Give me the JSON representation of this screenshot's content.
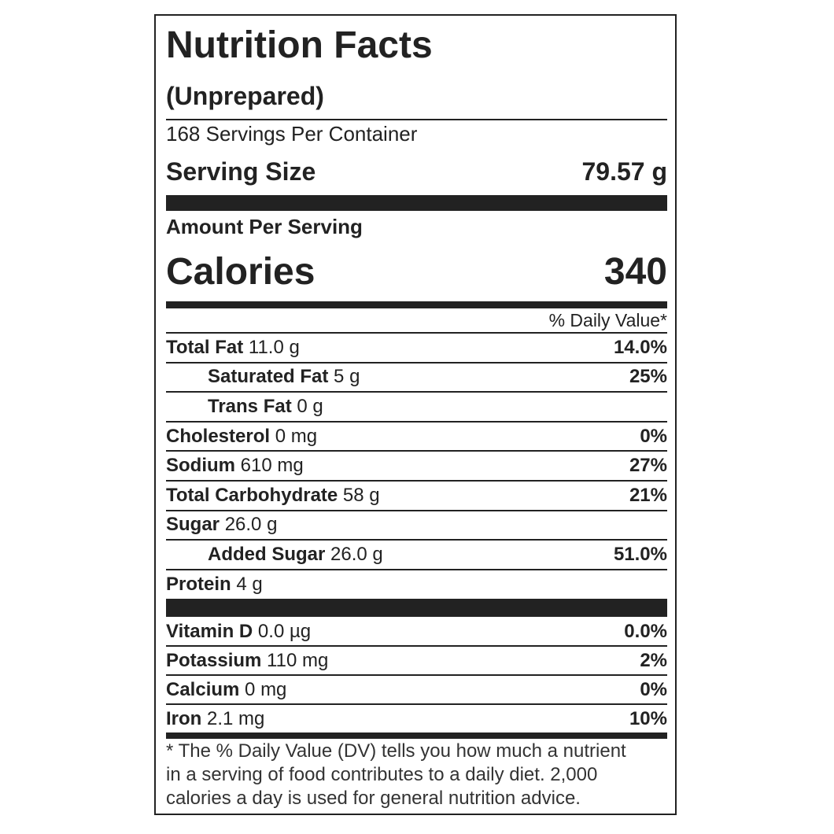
{
  "label": {
    "title": "Nutrition Facts",
    "subtitle": "(Unprepared)",
    "servings": "168 Servings Per Container",
    "serving_size": {
      "label": "Serving Size",
      "value": "79.57 g"
    },
    "amount_per_serving": "Amount Per Serving",
    "calories": {
      "label": "Calories",
      "value": "340"
    },
    "daily_value_header": "% Daily Value*",
    "nutrients": [
      {
        "name": "Total Fat",
        "amount": "11.0 g",
        "dv": "14.0%"
      },
      {
        "name": "Saturated Fat",
        "amount": "5 g",
        "dv": "25%",
        "indent": true
      },
      {
        "name": "Trans Fat",
        "amount": "0 g",
        "indent": true
      },
      {
        "name": "Cholesterol",
        "amount": "0 mg",
        "dv": "0%"
      },
      {
        "name": "Sodium",
        "amount": "610 mg",
        "dv": "27%"
      },
      {
        "name": "Total Carbohydrate",
        "amount": "58 g",
        "dv": "21%"
      },
      {
        "name": "Sugar",
        "amount": "26.0 g"
      },
      {
        "name": "Added Sugar",
        "amount": "26.0 g",
        "dv": "51.0%",
        "indent": true
      },
      {
        "name": "Protein",
        "amount": "4 g"
      }
    ],
    "vitamins": [
      {
        "name": "Vitamin D",
        "amount": "0.0 µg",
        "dv": "0.0%"
      },
      {
        "name": "Potassium",
        "amount": "110 mg",
        "dv": "2%"
      },
      {
        "name": "Calcium",
        "amount": "0 mg",
        "dv": "0%"
      },
      {
        "name": "Iron",
        "amount": "2.1 mg",
        "dv": "10%"
      }
    ],
    "footnote": [
      "* The % Daily Value (DV) tells you how much a nutrient",
      "in a serving of food contributes to a daily diet. 2,000",
      "calories a day is used for general nutrition advice."
    ]
  }
}
